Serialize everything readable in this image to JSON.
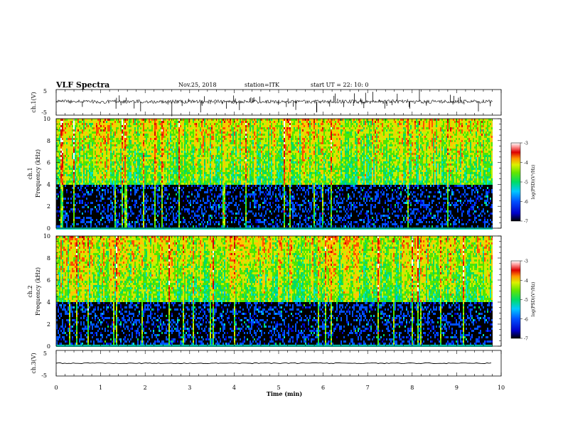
{
  "header": {
    "title": "VLF Spectra",
    "date": "Nov.25, 2018",
    "station": "station=ITK",
    "start": "start UT =  22: 10: 0"
  },
  "chart_data": [
    {
      "type": "line",
      "panel": "ch1-waveform",
      "ylabel": "ch.1(V)",
      "ylim": [
        -5,
        5
      ],
      "yticks": [
        "5",
        "-5"
      ],
      "x_range_min": [
        0,
        10
      ]
    },
    {
      "type": "heatmap",
      "panel": "ch1-spectrogram",
      "ylabel_line1": "ch.1",
      "ylabel_line2": "Frequency (kHz)",
      "ylim": [
        0,
        10
      ],
      "yticks": [
        "0",
        "2",
        "4",
        "6",
        "8",
        "10"
      ],
      "colorbar": {
        "label": "log(PSD)(V²/Hz)",
        "range": [
          -7,
          -3
        ],
        "ticks": [
          "-3",
          "-4",
          "-5",
          "-6",
          "-7"
        ]
      }
    },
    {
      "type": "heatmap",
      "panel": "ch2-spectrogram",
      "ylabel_line1": "ch.2",
      "ylabel_line2": "Frequency (kHz)",
      "ylim": [
        0,
        10
      ],
      "yticks": [
        "0",
        "2",
        "4",
        "6",
        "8",
        "10"
      ],
      "colorbar": {
        "label": "log(PSD)(V²/Hz)",
        "range": [
          -7,
          -3
        ],
        "ticks": [
          "-3",
          "-4",
          "-5",
          "-6",
          "-7"
        ]
      }
    },
    {
      "type": "line",
      "panel": "ch3-waveform",
      "ylabel": "ch.3(V)",
      "ylim": [
        -5,
        5
      ],
      "yticks": [
        "5",
        "-5"
      ]
    }
  ],
  "xaxis": {
    "label": "Time (min)",
    "xlim": [
      0,
      10
    ],
    "ticks": [
      "0",
      "1",
      "2",
      "3",
      "4",
      "5",
      "6",
      "7",
      "8",
      "9",
      "10"
    ]
  },
  "colors": {
    "colormap": [
      "#000000",
      "#0000c8",
      "#0050ff",
      "#00b4ff",
      "#00e6c8",
      "#00dc64",
      "#50e600",
      "#c8f000",
      "#ffc800",
      "#ff5000",
      "#dc0000",
      "#ffffff"
    ]
  }
}
